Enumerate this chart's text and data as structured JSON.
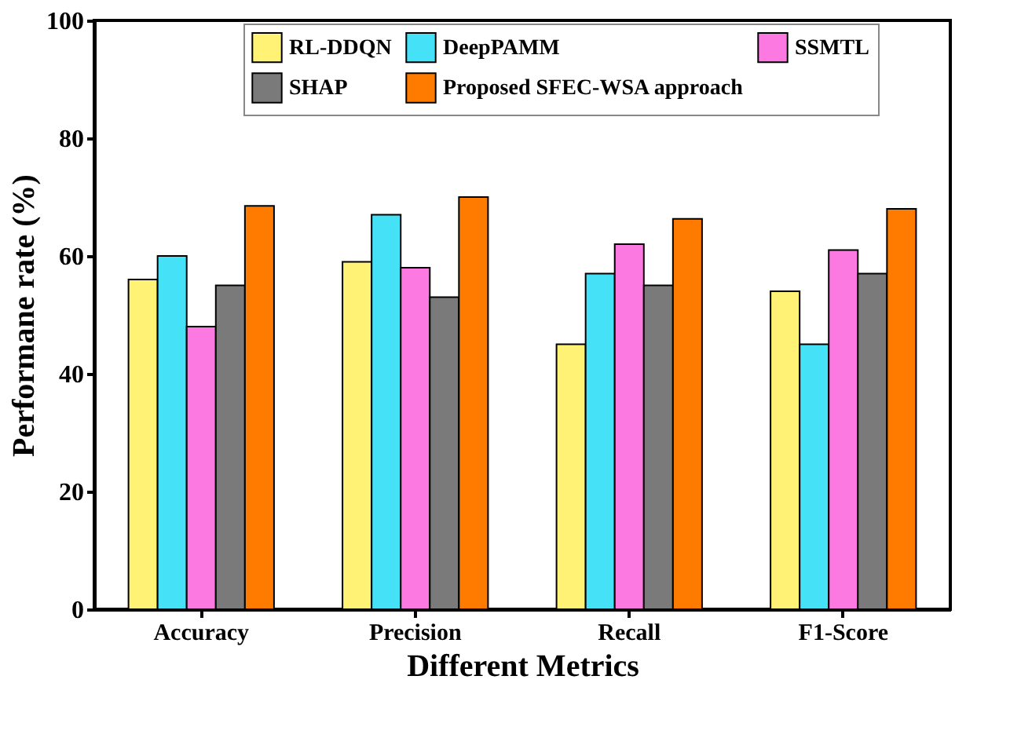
{
  "chart_data": {
    "type": "bar",
    "xlabel": "Different Metrics",
    "ylabel": "Performane rate (%)",
    "categories": [
      "Accuracy",
      "Precision",
      "Recall",
      "F1-Score"
    ],
    "series": [
      {
        "name": "RL-DDQN",
        "color": "#fff275",
        "values": [
          56,
          59,
          45,
          54
        ]
      },
      {
        "name": "DeepPAMM",
        "color": "#45e1f7",
        "values": [
          60,
          67,
          57,
          45
        ]
      },
      {
        "name": "SSMTL",
        "color": "#fd79e2",
        "values": [
          48,
          58,
          62,
          61
        ]
      },
      {
        "name": "SHAP",
        "color": "#7a7a7a",
        "values": [
          55,
          53,
          55,
          57
        ]
      },
      {
        "name": "Proposed SFEC-WSA approach",
        "color": "#ff7b00",
        "values": [
          68.5,
          70,
          66.3,
          68
        ]
      }
    ],
    "ylim": [
      0,
      100
    ],
    "yticks": [
      0,
      20,
      40,
      60,
      80,
      100
    ],
    "grid": false,
    "legend": "top"
  }
}
